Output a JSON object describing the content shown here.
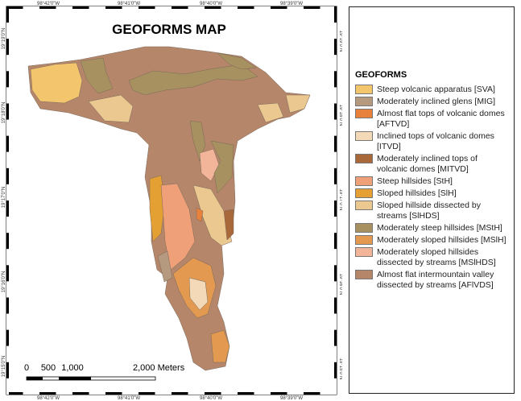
{
  "map": {
    "title": "GEOFORMS MAP",
    "top_labels": [
      "98°42'0\"W",
      "98°41'0\"W",
      "98°40'0\"W",
      "98°39'0\"W"
    ],
    "bottom_labels": [
      "98°42'0\"W",
      "98°41'0\"W",
      "98°40'0\"W",
      "98°39'0\"W"
    ],
    "left_labels": [
      "19°19'0\"N",
      "19°18'0\"N",
      "19°17'0\"N",
      "19°16'0\"N",
      "19°15'0\"N"
    ],
    "right_labels": [
      "19°19'0\"N",
      "19°18'0\"N",
      "19°17'0\"N",
      "19°16'0\"N",
      "19°15'0\"N"
    ],
    "scale_labels": [
      "0",
      "500",
      "1,000",
      "2,000 Meters"
    ]
  },
  "legend": {
    "title": "GEOFORMS",
    "items": [
      {
        "label": "Steep volcanic apparatus [SVA]",
        "color": "#f3c66e"
      },
      {
        "label": "Moderately inclined glens [MIG]",
        "color": "#b59a80"
      },
      {
        "label": "Almost flat tops of volcanic domes [AFTVD]",
        "color": "#e8813c"
      },
      {
        "label": "Inclined tops of volcanic domes [ITVD]",
        "color": "#f3d9b8"
      },
      {
        "label": "Moderately inclined tops of volcanic domes [MITVD]",
        "color": "#a8683a"
      },
      {
        "label": "Steep hillsides [StH]",
        "color": "#f0a078"
      },
      {
        "label": "Sloped hillsides [SlH]",
        "color": "#e4a032"
      },
      {
        "label": "Sloped hillside dissected by streams [SlHDS]",
        "color": "#ecc891"
      },
      {
        "label": "Moderately steep hillsides [MStH]",
        "color": "#a89160"
      },
      {
        "label": "Moderately sloped hillsides [MSlH]",
        "color": "#e39a50"
      },
      {
        "label": "Moderately sloped hillsides dissected by streams [MSlHDS]",
        "color": "#f3b59a"
      },
      {
        "label": "Almost flat intermountain valley dissected by streams [AFlVDS]",
        "color": "#b5866a"
      }
    ]
  }
}
